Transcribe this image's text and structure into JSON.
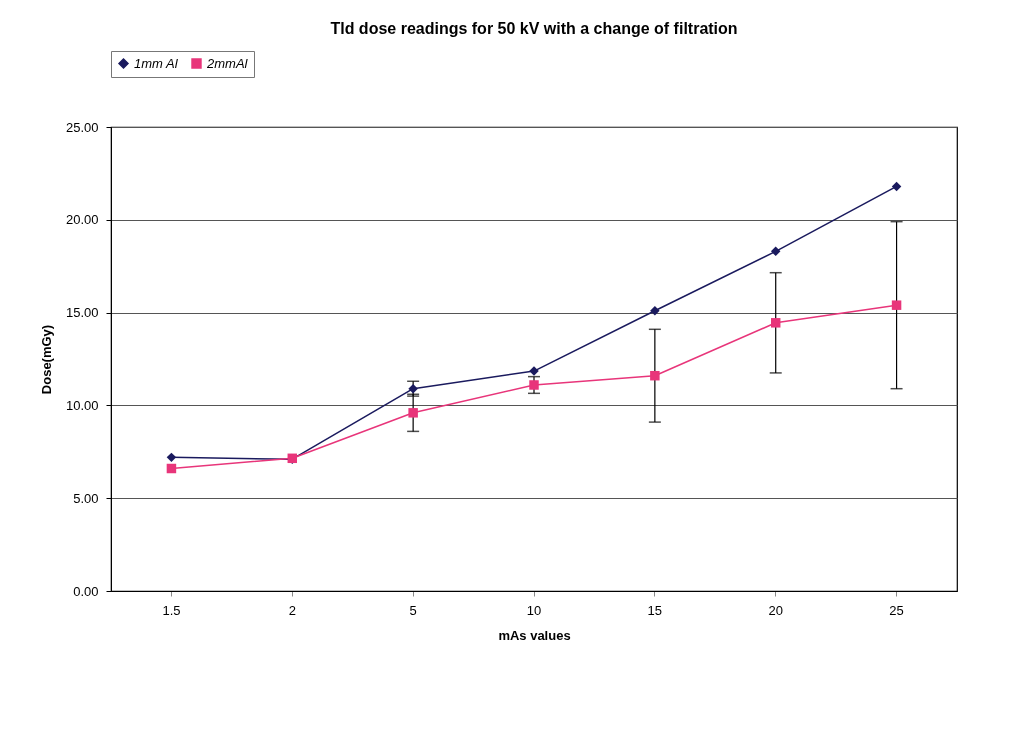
{
  "chart_data": {
    "type": "line",
    "title": "Tld dose readings for 50 kV with a change of filtration",
    "xlabel": "mAs values",
    "ylabel": "Dose(mGy)",
    "categories": [
      "1.5",
      "2",
      "5",
      "10",
      "15",
      "20",
      "25"
    ],
    "series": [
      {
        "name": "1mm Al",
        "color": "#1a1a5e",
        "marker": "diamond",
        "values": [
          7.2,
          7.1,
          10.9,
          11.85,
          15.1,
          18.3,
          21.8
        ],
        "errors": [
          null,
          null,
          0.4,
          null,
          null,
          null,
          null
        ]
      },
      {
        "name": "2mmAl",
        "color": "#e8357a",
        "marker": "square",
        "values": [
          6.6,
          7.15,
          9.6,
          11.1,
          11.6,
          14.45,
          15.4
        ],
        "errors": [
          null,
          null,
          1.0,
          0.45,
          2.5,
          2.7,
          4.5
        ]
      }
    ],
    "ylim": [
      0,
      25
    ],
    "yticks": [
      {
        "value": 0,
        "label": "0.00"
      },
      {
        "value": 5,
        "label": "5.00"
      },
      {
        "value": 10,
        "label": "10.00"
      },
      {
        "value": 15,
        "label": "15.00"
      },
      {
        "value": 20,
        "label": "20.00"
      },
      {
        "value": 25,
        "label": "25.00"
      }
    ],
    "grid": "y",
    "legend": "top"
  }
}
